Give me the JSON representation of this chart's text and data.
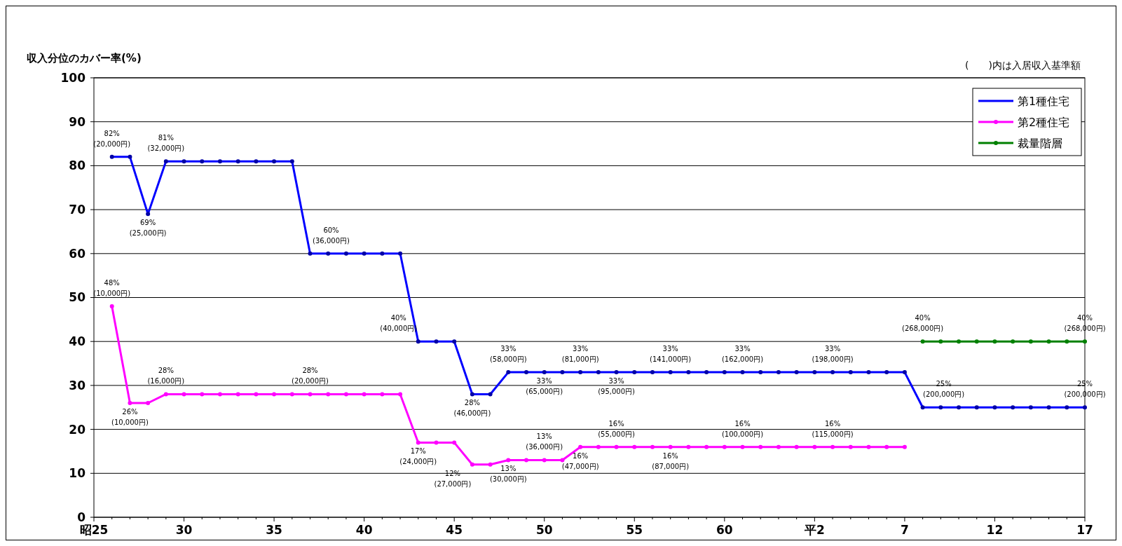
{
  "chart_data": {
    "type": "line",
    "ylabel": "収入分位のカバー率(%)",
    "categories": [
      "昭25",
      null,
      null,
      null,
      null,
      "30",
      null,
      null,
      null,
      null,
      "35",
      null,
      null,
      null,
      null,
      "40",
      null,
      null,
      null,
      null,
      "45",
      null,
      null,
      null,
      null,
      "50",
      null,
      null,
      null,
      null,
      "55",
      null,
      null,
      null,
      null,
      "60",
      null,
      null,
      null,
      null,
      "平2",
      null,
      null,
      null,
      null,
      "7",
      null,
      null,
      null,
      null,
      "12",
      null,
      null,
      null,
      null,
      "17"
    ],
    "ylim": [
      0,
      100
    ],
    "yticks": [
      0,
      10,
      20,
      30,
      40,
      50,
      60,
      70,
      80,
      90,
      100
    ],
    "grid": "y",
    "legend": "top right",
    "marker": "circle",
    "line_style": "solid",
    "series": [
      {
        "name": "第1種住宅",
        "color": "#0000ff",
        "values": [
          null,
          82,
          82,
          69,
          81,
          81,
          81,
          81,
          81,
          81,
          81,
          81,
          60,
          60,
          60,
          60,
          60,
          60,
          40,
          40,
          40,
          28,
          28,
          33,
          33,
          33,
          33,
          33,
          33,
          33,
          33,
          33,
          33,
          33,
          33,
          33,
          33,
          33,
          33,
          33,
          33,
          33,
          33,
          33,
          33,
          33,
          25,
          25,
          25,
          25,
          25,
          25,
          25,
          25,
          25,
          25
        ],
        "value_labels": [
          null,
          "82%\n(20,000円)",
          null,
          "69%\n(25,000円)",
          "81%\n(32,000円)",
          null,
          null,
          null,
          null,
          null,
          null,
          null,
          "60%\n(36,000円)",
          null,
          null,
          null,
          null,
          null,
          "40%\n(40,000円)",
          null,
          null,
          "28%\n(46,000円)",
          null,
          "33%\n(58,000円)",
          null,
          "33%\n(65,000円)",
          null,
          "33%\n(81,000円)",
          null,
          "33%\n(95,000円)",
          null,
          null,
          "33%\n(141,000円)",
          null,
          null,
          null,
          "33%\n(162,000円)",
          null,
          null,
          null,
          null,
          "33%\n(198,000円)",
          null,
          null,
          null,
          null,
          "25%\n(200,000円)",
          null,
          null,
          null,
          null,
          null,
          null,
          null,
          null,
          "25%\n(200,000円)"
        ]
      },
      {
        "name": "第2種住宅",
        "color": "#ff00ff",
        "values": [
          null,
          48,
          26,
          26,
          28,
          28,
          28,
          28,
          28,
          28,
          28,
          28,
          28,
          28,
          28,
          28,
          28,
          28,
          17,
          17,
          17,
          12,
          12,
          13,
          13,
          13,
          13,
          16,
          16,
          16,
          16,
          16,
          16,
          16,
          16,
          16,
          16,
          16,
          16,
          16,
          16,
          16,
          16,
          16,
          16,
          16,
          null,
          null,
          null,
          null,
          null,
          null,
          null,
          null,
          null,
          null
        ],
        "value_labels": [
          null,
          "48%\n(10,000円)",
          "26%\n(10,000円)",
          null,
          "28%\n(16,000円)",
          null,
          null,
          null,
          null,
          null,
          null,
          null,
          "28%\n(20,000円)",
          null,
          null,
          null,
          null,
          null,
          "17%\n(24,000円)",
          null,
          null,
          "12%\n(27,000円)",
          null,
          "13%\n(30,000円)",
          null,
          "13%\n(36,000円)",
          null,
          "16%\n(47,000円)",
          null,
          "16%\n(55,000円)",
          null,
          null,
          "16%\n(87,000円)",
          null,
          null,
          null,
          "16%\n(100,000円)",
          null,
          null,
          null,
          null,
          "16%\n(115,000円)",
          null,
          null,
          null,
          null,
          null,
          null,
          null,
          null,
          null,
          null,
          null,
          null,
          null,
          null
        ]
      },
      {
        "name": "裁量階層",
        "color": "#008000",
        "values": [
          null,
          null,
          null,
          null,
          null,
          null,
          null,
          null,
          null,
          null,
          null,
          null,
          null,
          null,
          null,
          null,
          null,
          null,
          null,
          null,
          null,
          null,
          null,
          null,
          null,
          null,
          null,
          null,
          null,
          null,
          null,
          null,
          null,
          null,
          null,
          null,
          null,
          null,
          null,
          null,
          null,
          null,
          null,
          null,
          null,
          null,
          40,
          40,
          40,
          40,
          40,
          40,
          40,
          40,
          40,
          40
        ],
        "value_labels": [
          null,
          null,
          null,
          null,
          null,
          null,
          null,
          null,
          null,
          null,
          null,
          null,
          null,
          null,
          null,
          null,
          null,
          null,
          null,
          null,
          null,
          null,
          null,
          null,
          null,
          null,
          null,
          null,
          null,
          null,
          null,
          null,
          null,
          null,
          null,
          null,
          null,
          null,
          null,
          null,
          null,
          null,
          null,
          null,
          null,
          null,
          "40%\n(268,000円)",
          null,
          null,
          null,
          null,
          null,
          null,
          null,
          null,
          "40%\n(268,000円)"
        ]
      }
    ],
    "annotations": [
      "(　　)内は入居収入基準額"
    ]
  }
}
